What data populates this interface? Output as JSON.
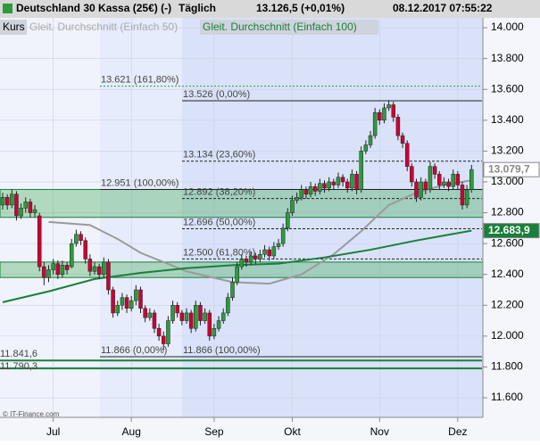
{
  "header": {
    "title": "Deutschland 30 Kassa (25€) (-)",
    "interval": "Täglich",
    "quote": "13.126,5 (+0,01%)",
    "timestamp": "08.12.2017 07:55:22"
  },
  "legend": [
    "Kurs",
    "Gleit. Durchschnitt (Einfach 50)",
    "Gleit. Durchschnitt (Einfach 100)"
  ],
  "credit": "© IT-Finance.com",
  "chart_data": {
    "type": "candlestick",
    "ylim": [
      11473,
      14064
    ],
    "yticks": [
      {
        "value": 14000,
        "label": "14.000"
      },
      {
        "value": 13800,
        "label": "13.800"
      },
      {
        "value": 13600,
        "label": "13.600"
      },
      {
        "value": 13400,
        "label": "13.400"
      },
      {
        "value": 13200,
        "label": "13.200"
      },
      {
        "value": 13000,
        "label": "13.000"
      },
      {
        "value": 12800,
        "label": "12.800"
      },
      {
        "value": 12600,
        "label": "12.600"
      },
      {
        "value": 12400,
        "label": "12.400"
      },
      {
        "value": 12200,
        "label": "12.200"
      },
      {
        "value": 12000,
        "label": "12.000"
      },
      {
        "value": 11800,
        "label": "11.800"
      },
      {
        "value": 11600,
        "label": "11.600"
      }
    ],
    "xticks": [
      {
        "value": 11,
        "label": "Jul"
      },
      {
        "value": 28,
        "label": "Aug"
      },
      {
        "value": 46,
        "label": "Sep"
      },
      {
        "value": 63,
        "label": "Okt"
      },
      {
        "value": 82,
        "label": "Nov"
      },
      {
        "value": 99,
        "label": "Dez"
      }
    ],
    "up_color": "#2e9a3e",
    "down_color": "#cc0033",
    "candles": [
      [
        12850,
        12930,
        12820,
        12900
      ],
      [
        12900,
        12920,
        12820,
        12850
      ],
      [
        12850,
        12950,
        12830,
        12920
      ],
      [
        12920,
        12940,
        12750,
        12780
      ],
      [
        12780,
        12860,
        12760,
        12830
      ],
      [
        12830,
        12900,
        12800,
        12870
      ],
      [
        12870,
        12890,
        12770,
        12800
      ],
      [
        12800,
        12850,
        12770,
        12820
      ],
      [
        12780,
        12800,
        12420,
        12450
      ],
      [
        12450,
        12480,
        12330,
        12380
      ],
      [
        12380,
        12460,
        12350,
        12430
      ],
      [
        12430,
        12500,
        12400,
        12470
      ],
      [
        12470,
        12490,
        12370,
        12400
      ],
      [
        12400,
        12490,
        12380,
        12460
      ],
      [
        12460,
        12480,
        12400,
        12430
      ],
      [
        12450,
        12630,
        12440,
        12600
      ],
      [
        12600,
        12690,
        12580,
        12660
      ],
      [
        12660,
        12680,
        12590,
        12620
      ],
      [
        12620,
        12640,
        12470,
        12500
      ],
      [
        12500,
        12530,
        12390,
        12420
      ],
      [
        12420,
        12480,
        12400,
        12450
      ],
      [
        12450,
        12470,
        12370,
        12400
      ],
      [
        12400,
        12510,
        12380,
        12480
      ],
      [
        12480,
        12500,
        12270,
        12300
      ],
      [
        12300,
        12320,
        12120,
        12150
      ],
      [
        12150,
        12230,
        12130,
        12200
      ],
      [
        12200,
        12280,
        12170,
        12250
      ],
      [
        12250,
        12270,
        12150,
        12180
      ],
      [
        12180,
        12260,
        12160,
        12230
      ],
      [
        12230,
        12330,
        12200,
        12300
      ],
      [
        12300,
        12320,
        12150,
        12180
      ],
      [
        12180,
        12200,
        12090,
        12120
      ],
      [
        12120,
        12180,
        12100,
        12150
      ],
      [
        12150,
        12170,
        12020,
        12050
      ],
      [
        12050,
        12080,
        11970,
        12000
      ],
      [
        12000,
        12030,
        11910,
        11950
      ],
      [
        11950,
        12130,
        11930,
        12100
      ],
      [
        12100,
        12230,
        12080,
        12200
      ],
      [
        12200,
        12220,
        12120,
        12150
      ],
      [
        12150,
        12170,
        12070,
        12100
      ],
      [
        12100,
        12180,
        12080,
        12150
      ],
      [
        12150,
        12170,
        12020,
        12050
      ],
      [
        12050,
        12230,
        12030,
        12200
      ],
      [
        12200,
        12220,
        12070,
        12100
      ],
      [
        12100,
        12180,
        12080,
        12150
      ],
      [
        12150,
        12170,
        11970,
        12000
      ],
      [
        12000,
        12080,
        11980,
        12050
      ],
      [
        12050,
        12130,
        12030,
        12100
      ],
      [
        12100,
        12180,
        12080,
        12150
      ],
      [
        12150,
        12280,
        12130,
        12250
      ],
      [
        12250,
        12380,
        12230,
        12350
      ],
      [
        12350,
        12480,
        12330,
        12450
      ],
      [
        12450,
        12530,
        12430,
        12500
      ],
      [
        12500,
        12520,
        12450,
        12480
      ],
      [
        12480,
        12550,
        12460,
        12520
      ],
      [
        12520,
        12540,
        12470,
        12500
      ],
      [
        12500,
        12560,
        12480,
        12530
      ],
      [
        12530,
        12590,
        12510,
        12560
      ],
      [
        12560,
        12580,
        12490,
        12520
      ],
      [
        12520,
        12610,
        12500,
        12580
      ],
      [
        12580,
        12630,
        12560,
        12600
      ],
      [
        12600,
        12730,
        12580,
        12700
      ],
      [
        12700,
        12830,
        12680,
        12800
      ],
      [
        12800,
        12910,
        12780,
        12880
      ],
      [
        12880,
        12930,
        12860,
        12900
      ],
      [
        12900,
        12980,
        12880,
        12950
      ],
      [
        12950,
        12970,
        12890,
        12920
      ],
      [
        12920,
        13000,
        12900,
        12970
      ],
      [
        12970,
        12990,
        12910,
        12940
      ],
      [
        12940,
        13020,
        12920,
        12990
      ],
      [
        12990,
        13010,
        12930,
        12960
      ],
      [
        12960,
        13030,
        12940,
        13000
      ],
      [
        13000,
        13020,
        12950,
        12980
      ],
      [
        12980,
        13060,
        12960,
        13030
      ],
      [
        13030,
        13050,
        12970,
        13000
      ],
      [
        13000,
        13020,
        12930,
        12960
      ],
      [
        12960,
        13080,
        12940,
        13050
      ],
      [
        13050,
        13070,
        12920,
        12950
      ],
      [
        12950,
        13230,
        12930,
        13200
      ],
      [
        13200,
        13270,
        13180,
        13240
      ],
      [
        13240,
        13330,
        13220,
        13300
      ],
      [
        13300,
        13480,
        13280,
        13450
      ],
      [
        13450,
        13470,
        13370,
        13400
      ],
      [
        13400,
        13510,
        13380,
        13480
      ],
      [
        13480,
        13530,
        13460,
        13500
      ],
      [
        13500,
        13520,
        13390,
        13420
      ],
      [
        13420,
        13440,
        13270,
        13300
      ],
      [
        13300,
        13320,
        13220,
        13250
      ],
      [
        13250,
        13270,
        13070,
        13100
      ],
      [
        13100,
        13120,
        12970,
        13000
      ],
      [
        13000,
        13020,
        12870,
        12900
      ],
      [
        12900,
        13030,
        12880,
        13000
      ],
      [
        13000,
        13020,
        12920,
        12950
      ],
      [
        12950,
        13130,
        12930,
        13100
      ],
      [
        13100,
        13120,
        13020,
        13050
      ],
      [
        13050,
        13070,
        12950,
        12980
      ],
      [
        12980,
        13030,
        12960,
        13000
      ],
      [
        13000,
        13020,
        12940,
        12970
      ],
      [
        12970,
        13080,
        12950,
        13050
      ],
      [
        13050,
        13070,
        12950,
        12980
      ],
      [
        12980,
        13000,
        12820,
        12850
      ],
      [
        12850,
        12980,
        12830,
        12950
      ],
      [
        12950,
        13110,
        12930,
        13080
      ]
    ],
    "series": [
      {
        "name": "Gleit. Durchschnitt (Einfach 50)",
        "color": "#9a9a9a",
        "x": [
          10,
          19,
          25,
          30,
          40,
          50,
          58,
          65,
          72,
          78,
          84,
          90,
          96,
          102
        ],
        "values": [
          12740,
          12720,
          12630,
          12540,
          12420,
          12350,
          12340,
          12400,
          12530,
          12680,
          12850,
          12930,
          12980,
          13010
        ]
      },
      {
        "name": "Gleit. Durchschnitt (Einfach 100)",
        "color": "#1a7f3a",
        "x": [
          0,
          10,
          20,
          30,
          40,
          50,
          60,
          70,
          80,
          90,
          102
        ],
        "values": [
          12220,
          12290,
          12370,
          12410,
          12440,
          12460,
          12470,
          12510,
          12560,
          12620,
          12684
        ]
      }
    ],
    "zones": [
      [
        12770,
        12951
      ],
      [
        12380,
        12480
      ]
    ],
    "fib_levels": [
      {
        "value": 13621,
        "label": "13.621 (161,80%)",
        "style": "dotted"
      },
      {
        "value": 13526,
        "label": "13.526 (0,00%)",
        "style": "solid"
      },
      {
        "value": 13134,
        "label": "13.134 (23,60%)",
        "style": "dashed"
      },
      {
        "value": 12951,
        "label": "12.951 (100,00%)",
        "style": "solid"
      },
      {
        "value": 12892,
        "label": "12.892 (38,20%)",
        "style": "dashed"
      },
      {
        "value": 12696,
        "label": "12.696 (50,00%)",
        "style": "dashed"
      },
      {
        "value": 12500,
        "label": "12.500 (61,80%)",
        "style": "dashed"
      },
      {
        "value": 11866,
        "label": "11.866 (0,00%)",
        "style": "solid"
      },
      {
        "value": 11866,
        "label": "11.866 (100,00%)",
        "style": "solid"
      }
    ],
    "level_lines": [
      {
        "value": 11841.6,
        "label": "11.841,6"
      },
      {
        "value": 11790.3,
        "label": "11.790,3"
      }
    ],
    "markers": [
      {
        "value": 13079.7,
        "label": "13.079,7",
        "color": "#ffffff"
      },
      {
        "value": 12683.9,
        "label": "12.683,9",
        "color": "#1a7f3a"
      }
    ]
  }
}
